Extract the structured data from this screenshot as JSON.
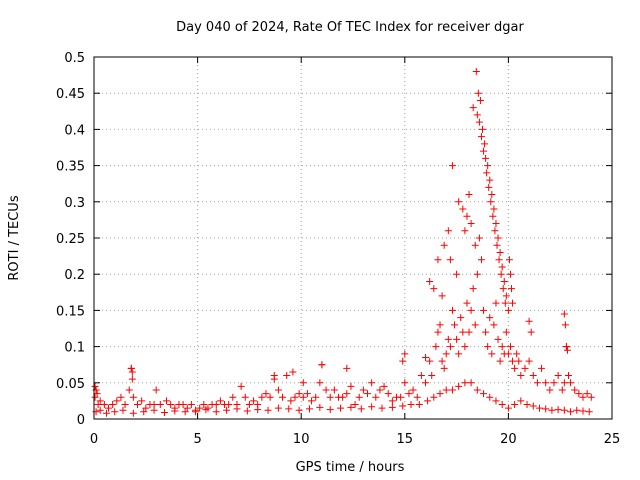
{
  "chart_data": {
    "type": "scatter",
    "title": "Day 040 of 2024, Rate Of TEC Index for receiver dgar",
    "xlabel": "GPS time / hours",
    "ylabel": "ROTI / TECUs",
    "xlim": [
      0,
      25
    ],
    "ylim": [
      0,
      0.5
    ],
    "xticks": [
      0,
      5,
      10,
      15,
      20,
      25
    ],
    "xtick_labels": [
      "0",
      "5",
      "10",
      "15",
      "20",
      "25"
    ],
    "yticks": [
      0,
      0.05,
      0.1,
      0.15,
      0.2,
      0.25,
      0.3,
      0.35,
      0.4,
      0.45,
      0.5
    ],
    "ytick_labels": [
      "0",
      "0.05",
      "0.1",
      "0.15",
      "0.2",
      "0.25",
      "0.3",
      "0.35",
      "0.4",
      "0.45",
      "0.5"
    ],
    "grid": true,
    "marker": "plus",
    "color": "#ff0000",
    "series": [
      {
        "name": "ROTI",
        "x": [
          0.05,
          0.1,
          0.15,
          0.2,
          0.3,
          0.5,
          0.7,
          0.9,
          1.1,
          1.3,
          1.5,
          1.7,
          1.8,
          1.85,
          1.9,
          2.1,
          2.3,
          2.5,
          2.7,
          2.9,
          3.0,
          3.2,
          3.5,
          3.7,
          3.9,
          4.1,
          4.3,
          4.5,
          4.7,
          4.9,
          5.1,
          5.3,
          5.5,
          5.7,
          5.9,
          6.1,
          6.3,
          6.5,
          6.7,
          6.9,
          7.1,
          7.3,
          7.5,
          7.7,
          7.9,
          8.1,
          8.3,
          8.5,
          8.7,
          8.9,
          9.1,
          9.3,
          9.5,
          9.7,
          9.9,
          10.1,
          10.3,
          10.5,
          10.7,
          10.9,
          11.0,
          11.2,
          11.4,
          11.6,
          11.8,
          12.0,
          12.2,
          12.4,
          12.6,
          12.8,
          13.0,
          13.2,
          13.4,
          13.6,
          13.8,
          14.0,
          14.2,
          14.4,
          14.6,
          14.8,
          14.9,
          15.0,
          15.2,
          15.4,
          15.6,
          15.8,
          16.0,
          16.2,
          16.3,
          16.5,
          16.6,
          16.7,
          16.8,
          16.9,
          17.0,
          17.1,
          17.2,
          17.3,
          17.4,
          17.5,
          17.6,
          17.7,
          17.8,
          17.9,
          18.0,
          18.1,
          18.2,
          18.3,
          18.4,
          18.5,
          18.6,
          18.7,
          18.8,
          18.9,
          19.0,
          19.1,
          19.2,
          19.3,
          19.4,
          19.5,
          19.6,
          19.7,
          19.8,
          19.9,
          20.0,
          20.1,
          20.2,
          20.3,
          20.4,
          20.5,
          20.6,
          20.8,
          21.0,
          21.2,
          21.4,
          21.6,
          21.8,
          22.0,
          22.2,
          22.4,
          22.6,
          22.7,
          22.8,
          22.9,
          23.0,
          23.2,
          23.4,
          23.6,
          23.8,
          24.0,
          0.1,
          0.3,
          0.6,
          1.0,
          1.4,
          1.9,
          2.4,
          2.9,
          3.4,
          3.9,
          4.4,
          4.9,
          5.4,
          5.9,
          6.4,
          6.9,
          7.4,
          7.9,
          8.4,
          8.9,
          9.4,
          9.9,
          10.4,
          10.9,
          11.4,
          11.9,
          12.4,
          12.9,
          13.4,
          13.9,
          14.4,
          14.9,
          15.3,
          15.7,
          16.1,
          16.4,
          16.7,
          17.0,
          17.3,
          17.6,
          17.9,
          18.2,
          18.5,
          18.8,
          19.1,
          19.4,
          19.7,
          20.0,
          20.3,
          20.6,
          20.9,
          21.2,
          21.5,
          21.8,
          22.1,
          22.4,
          22.7,
          23.0,
          23.3,
          23.6,
          23.9,
          16.9,
          17.1,
          17.3,
          17.6,
          17.8,
          18.0,
          18.2,
          18.4,
          18.45,
          18.55,
          18.6,
          18.7,
          18.8,
          18.9,
          19.0,
          19.1,
          19.2,
          19.3,
          19.4,
          19.5,
          19.6,
          19.7,
          19.8,
          19.9,
          20.0,
          20.05,
          20.1,
          20.15,
          20.2,
          18.5,
          18.65,
          18.75,
          18.85,
          18.95,
          19.05,
          19.15,
          19.25,
          19.35,
          19.45,
          19.55,
          19.65,
          19.75,
          19.85,
          18.3,
          18.1,
          17.9,
          17.5,
          17.2,
          16.8,
          16.6,
          16.4,
          16.2,
          22.7,
          22.75,
          22.8,
          22.85,
          21.0,
          21.1,
          1.8,
          1.85,
          0.05,
          0.1,
          8.7,
          9.6,
          10.1,
          11.0,
          12.2,
          15.0,
          16.0
        ],
        "y": [
          0.03,
          0.04,
          0.035,
          0.02,
          0.025,
          0.02,
          0.015,
          0.02,
          0.025,
          0.03,
          0.02,
          0.04,
          0.07,
          0.055,
          0.03,
          0.02,
          0.025,
          0.015,
          0.02,
          0.02,
          0.04,
          0.02,
          0.025,
          0.02,
          0.015,
          0.02,
          0.02,
          0.015,
          0.02,
          0.01,
          0.015,
          0.02,
          0.015,
          0.02,
          0.02,
          0.025,
          0.02,
          0.02,
          0.03,
          0.02,
          0.045,
          0.03,
          0.02,
          0.025,
          0.02,
          0.03,
          0.035,
          0.03,
          0.055,
          0.04,
          0.03,
          0.06,
          0.025,
          0.03,
          0.035,
          0.03,
          0.035,
          0.025,
          0.03,
          0.05,
          0.075,
          0.04,
          0.03,
          0.04,
          0.03,
          0.03,
          0.035,
          0.045,
          0.02,
          0.03,
          0.04,
          0.035,
          0.05,
          0.03,
          0.04,
          0.045,
          0.035,
          0.025,
          0.03,
          0.03,
          0.08,
          0.05,
          0.035,
          0.04,
          0.03,
          0.06,
          0.05,
          0.08,
          0.06,
          0.1,
          0.12,
          0.13,
          0.08,
          0.07,
          0.09,
          0.11,
          0.1,
          0.15,
          0.13,
          0.11,
          0.09,
          0.14,
          0.12,
          0.1,
          0.16,
          0.12,
          0.15,
          0.18,
          0.13,
          0.2,
          0.25,
          0.22,
          0.15,
          0.12,
          0.1,
          0.14,
          0.09,
          0.13,
          0.16,
          0.11,
          0.08,
          0.1,
          0.09,
          0.12,
          0.09,
          0.1,
          0.08,
          0.07,
          0.09,
          0.08,
          0.06,
          0.07,
          0.08,
          0.06,
          0.05,
          0.07,
          0.05,
          0.04,
          0.05,
          0.06,
          0.04,
          0.05,
          0.1,
          0.06,
          0.05,
          0.04,
          0.035,
          0.03,
          0.035,
          0.03,
          0.01,
          0.012,
          0.008,
          0.01,
          0.012,
          0.008,
          0.01,
          0.012,
          0.009,
          0.011,
          0.01,
          0.012,
          0.013,
          0.01,
          0.012,
          0.014,
          0.011,
          0.013,
          0.012,
          0.015,
          0.014,
          0.012,
          0.014,
          0.016,
          0.013,
          0.015,
          0.016,
          0.014,
          0.017,
          0.015,
          0.016,
          0.018,
          0.02,
          0.02,
          0.025,
          0.03,
          0.035,
          0.04,
          0.04,
          0.045,
          0.05,
          0.05,
          0.04,
          0.035,
          0.03,
          0.025,
          0.02,
          0.015,
          0.02,
          0.025,
          0.02,
          0.018,
          0.015,
          0.014,
          0.012,
          0.013,
          0.012,
          0.01,
          0.012,
          0.011,
          0.01,
          0.24,
          0.26,
          0.35,
          0.3,
          0.29,
          0.28,
          0.27,
          0.24,
          0.48,
          0.45,
          0.41,
          0.39,
          0.37,
          0.36,
          0.35,
          0.33,
          0.31,
          0.29,
          0.27,
          0.25,
          0.23,
          0.21,
          0.19,
          0.17,
          0.15,
          0.22,
          0.2,
          0.18,
          0.16,
          0.42,
          0.44,
          0.4,
          0.38,
          0.34,
          0.32,
          0.3,
          0.28,
          0.26,
          0.24,
          0.22,
          0.2,
          0.18,
          0.16,
          0.43,
          0.31,
          0.26,
          0.2,
          0.22,
          0.17,
          0.22,
          0.18,
          0.19,
          0.145,
          0.13,
          0.1,
          0.095,
          0.135,
          0.12,
          0.07,
          0.065,
          0.045,
          0.04,
          0.06,
          0.065,
          0.05,
          0.075,
          0.07,
          0.09,
          0.085
        ]
      }
    ]
  }
}
